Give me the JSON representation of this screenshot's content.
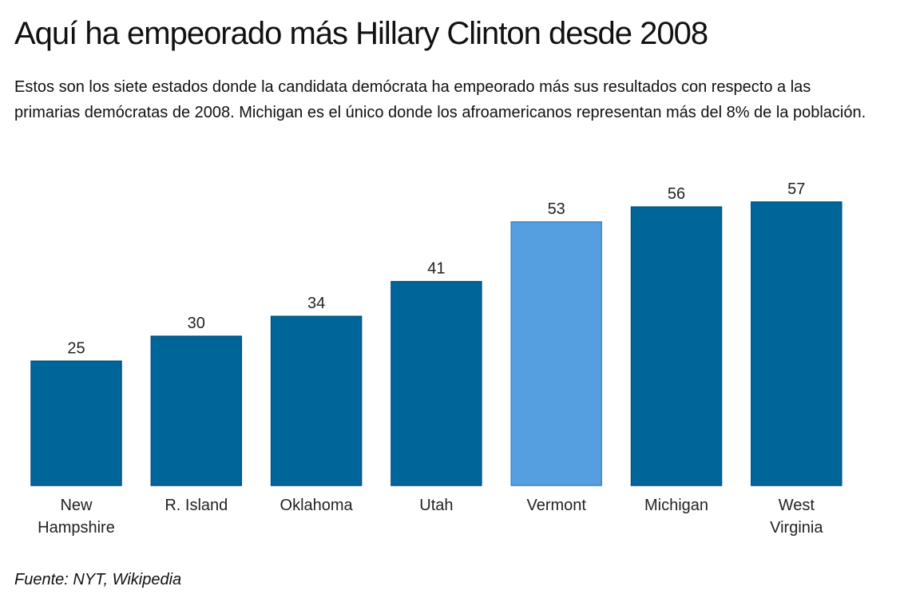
{
  "header": {
    "title": "Aquí ha empeorado más Hillary Clinton desde 2008",
    "subtitle": "Estos son los siete estados donde la candidata demócrata ha empeorado más sus resultados con respecto a las primarias demócratas de 2008. Michigan es el único donde los afroamericanos representan más del 8% de la población."
  },
  "footer": {
    "source": "Fuente: NYT, Wikipedia"
  },
  "colors": {
    "bar": "#006699",
    "bar_stroke": "#005580",
    "highlight": "#559ee0",
    "highlight_stroke": "#3a86cc"
  },
  "chart_data": {
    "type": "bar",
    "title": "Aquí ha empeorado más Hillary Clinton desde 2008",
    "xlabel": "",
    "ylabel": "",
    "ylim": [
      0,
      57
    ],
    "grid": false,
    "legend": "none",
    "categories": [
      [
        "New",
        "Hampshire"
      ],
      [
        "R. Island"
      ],
      [
        "Oklahoma"
      ],
      [
        "Utah"
      ],
      [
        "Vermont"
      ],
      [
        "Michigan"
      ],
      [
        "West",
        "Virginia"
      ]
    ],
    "values": [
      25,
      30,
      34,
      41,
      53,
      56,
      57
    ],
    "highlighted": [
      false,
      false,
      false,
      false,
      true,
      false,
      false
    ]
  }
}
